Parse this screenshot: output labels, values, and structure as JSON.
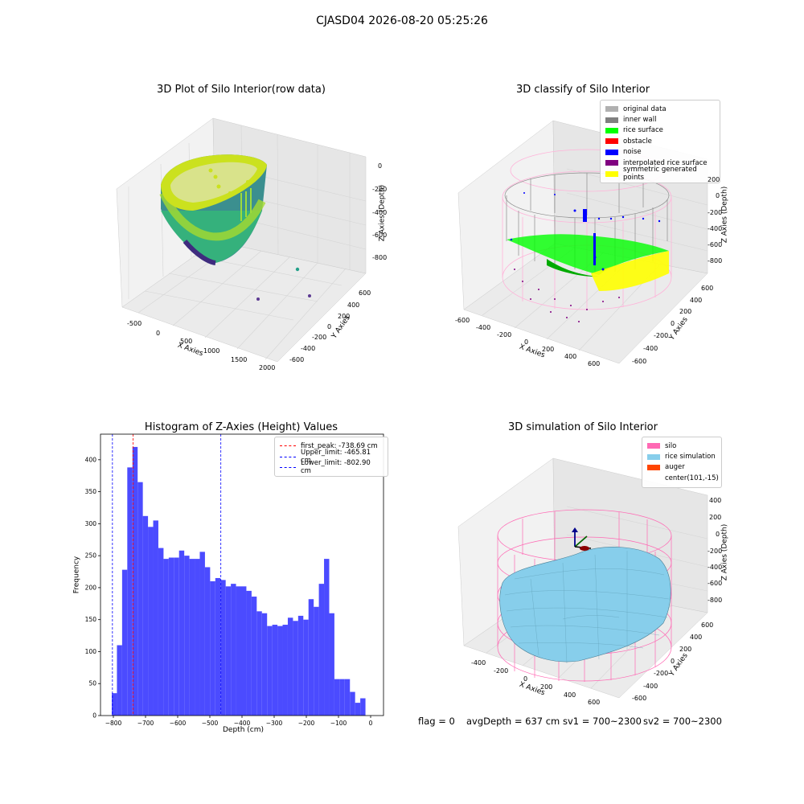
{
  "suptitle": "CJASD04 2026-08-20 05:25:26",
  "panels": {
    "p1": {
      "title": "3D Plot of Silo Interior(row data)",
      "xlabel": "X Axies",
      "ylabel": "Y Axies",
      "zlabel": "Z Axies (Depth)",
      "xticks": [
        "-500",
        "0",
        "500",
        "1000",
        "1500",
        "2000"
      ],
      "yticks": [
        "600",
        "400",
        "200",
        "0",
        "-200",
        "-400",
        "-600"
      ],
      "zticks": [
        "0",
        "-200",
        "-400",
        "-600",
        "-800"
      ]
    },
    "p2": {
      "title": "3D classify of Silo Interior",
      "xlabel": "X Axies",
      "ylabel": "Y Axies",
      "zlabel": "Z Axies (Depth)",
      "xticks": [
        "-600",
        "-400",
        "-200",
        "0",
        "200",
        "400",
        "600"
      ],
      "yticks": [
        "600",
        "400",
        "200",
        "0",
        "-200",
        "-400",
        "-600"
      ],
      "zticks": [
        "200",
        "0",
        "-200",
        "-400",
        "-600",
        "-800"
      ],
      "legend": [
        {
          "label": "original data",
          "color": "#b0b0b0"
        },
        {
          "label": "inner wall",
          "color": "#808080"
        },
        {
          "label": "rice surface",
          "color": "#00ff00"
        },
        {
          "label": "obstacle",
          "color": "#ff0000"
        },
        {
          "label": "noise",
          "color": "#0000ff"
        },
        {
          "label": "interpolated rice surface",
          "color": "#800080"
        },
        {
          "label": "symmetric generated points",
          "color": "#ffff00"
        }
      ]
    },
    "p4": {
      "title": "3D simulation of Silo Interior",
      "xlabel": "X Axies",
      "ylabel": "Y Axies",
      "zlabel": "Z Axies (Depth)",
      "xticks": [
        "-400",
        "-200",
        "0",
        "200",
        "400",
        "600"
      ],
      "yticks": [
        "600",
        "400",
        "200",
        "0",
        "-200",
        "-400",
        "-600"
      ],
      "zticks": [
        "400",
        "200",
        "0",
        "-200",
        "-400",
        "-600",
        "-800"
      ],
      "legend": [
        {
          "label": "silo",
          "color": "#ff69b4"
        },
        {
          "label": "rice simulation",
          "color": "#87ceeb"
        },
        {
          "label": "auger",
          "color": "#ff4500"
        },
        {
          "label": "center(101,-15)",
          "color": ""
        }
      ]
    }
  },
  "footer": {
    "flag": "flag = 0",
    "avg": "avgDepth = 637 cm",
    "sv1": "sv1 = 700~2300",
    "sv2": "sv2 = 700~2300"
  },
  "chart_data": {
    "type": "bar",
    "title": "Histogram of Z-Axies (Height) Values",
    "xlabel": "Depth (cm)",
    "ylabel": "Frequency",
    "xlim": [
      -840,
      40
    ],
    "ylim": [
      0,
      440
    ],
    "xticks": [
      -800,
      -700,
      -600,
      -500,
      -400,
      -300,
      -200,
      -100,
      0
    ],
    "yticks": [
      0,
      50,
      100,
      150,
      200,
      250,
      300,
      350,
      400
    ],
    "bin_start": -805,
    "bin_width": 16.1,
    "values": [
      35,
      110,
      228,
      388,
      420,
      365,
      312,
      295,
      305,
      262,
      245,
      247,
      247,
      258,
      250,
      245,
      245,
      256,
      232,
      210,
      215,
      212,
      202,
      206,
      202,
      202,
      195,
      186,
      163,
      160,
      140,
      142,
      140,
      142,
      153,
      148,
      156,
      150,
      182,
      170,
      206,
      245,
      160,
      57,
      57,
      57,
      37,
      20,
      27
    ],
    "vlines": [
      {
        "label": "first_peak: -738.69 cm",
        "x": -738.69,
        "color": "#ff0000"
      },
      {
        "label": "Upper_limit: -465.81 cm",
        "x": -465.81,
        "color": "#0000ff"
      },
      {
        "label": "Lower_limit: -802.90 cm",
        "x": -802.9,
        "color": "#0000ff"
      }
    ],
    "bar_color": "#4b4bff"
  }
}
